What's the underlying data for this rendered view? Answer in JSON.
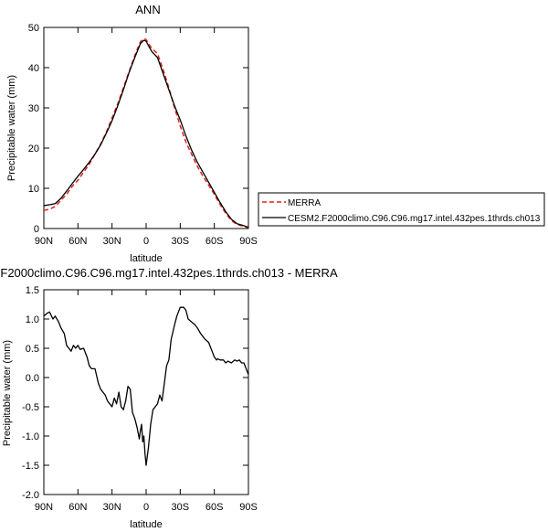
{
  "chart_data": [
    {
      "type": "line",
      "title": "ANN",
      "xlabel": "latitude",
      "ylabel": "Precipitable water (mm)",
      "xlim": [
        -90,
        90
      ],
      "ylim": [
        0,
        50
      ],
      "xticks": [
        -90,
        -60,
        -30,
        0,
        30,
        60,
        90
      ],
      "xtick_labels": [
        "90N",
        "60N",
        "30N",
        "0",
        "30S",
        "60S",
        "90S"
      ],
      "yticks": [
        0,
        10,
        20,
        30,
        40,
        50
      ],
      "ytick_labels": [
        "0",
        "10",
        "20",
        "30",
        "40",
        "50"
      ],
      "grid": false,
      "legend_position": "right",
      "series": [
        {
          "name": "MERRA",
          "color": "#e0201b",
          "style": "dashed",
          "x": [
            -90,
            -85,
            -80,
            -75,
            -70,
            -65,
            -60,
            -55,
            -50,
            -45,
            -40,
            -35,
            -30,
            -25,
            -20,
            -15,
            -10,
            -5,
            -2,
            0,
            2,
            5,
            10,
            15,
            20,
            25,
            30,
            35,
            40,
            45,
            50,
            55,
            60,
            65,
            70,
            75,
            80,
            85,
            90
          ],
          "y": [
            4.5,
            4.8,
            5.5,
            7,
            8.5,
            10.5,
            12,
            14,
            16,
            18.5,
            21,
            24,
            27.5,
            31,
            35,
            39,
            43,
            46.5,
            47.2,
            47,
            46,
            44.8,
            43.5,
            39.5,
            35,
            30,
            25.5,
            21.5,
            18.5,
            15.5,
            13,
            10.8,
            8.5,
            6,
            3.8,
            2,
            1,
            0.6,
            0.2
          ]
        },
        {
          "name": "CESM2.F2000climo.C96.C96.mg17.intel.432pes.1thrds.ch013",
          "color": "#000000",
          "style": "solid",
          "x": [
            -90,
            -85,
            -80,
            -75,
            -70,
            -65,
            -60,
            -55,
            -50,
            -45,
            -40,
            -35,
            -30,
            -25,
            -20,
            -15,
            -10,
            -5,
            -2,
            0,
            2,
            5,
            10,
            15,
            20,
            25,
            30,
            35,
            40,
            45,
            50,
            55,
            60,
            65,
            70,
            75,
            80,
            85,
            90
          ],
          "y": [
            5.7,
            5.9,
            6.2,
            7.5,
            9.3,
            11.2,
            13,
            14.7,
            16.5,
            18.5,
            20.8,
            23.7,
            26.8,
            30.5,
            34.5,
            38.8,
            42.5,
            46,
            46.8,
            46.6,
            45.5,
            44,
            42.5,
            38.5,
            34.5,
            30.5,
            27,
            23,
            19.5,
            16.5,
            14,
            11.5,
            9,
            6.5,
            4.2,
            2.3,
            1.2,
            0.8,
            0.3
          ]
        }
      ]
    },
    {
      "type": "line",
      "title": "F2000climo.C96.C96.mg17.intel.432pes.1thrds.ch013 - MERRA",
      "xlabel": "latitude",
      "ylabel": "Precipitable water (mm)",
      "xlim": [
        -90,
        90
      ],
      "ylim": [
        -2.0,
        1.5
      ],
      "xticks": [
        -90,
        -60,
        -30,
        0,
        30,
        60,
        90
      ],
      "xtick_labels": [
        "90N",
        "60N",
        "30N",
        "0",
        "30S",
        "60S",
        "90S"
      ],
      "yticks": [
        -2.0,
        -1.5,
        -1.0,
        -0.5,
        0.0,
        0.5,
        1.0,
        1.5
      ],
      "ytick_labels": [
        "-2.0",
        "-1.5",
        "-1.0",
        "-0.5",
        "0.0",
        "0.5",
        "1.0",
        "1.5"
      ],
      "grid": false,
      "series": [
        {
          "color": "#000000",
          "style": "solid",
          "x": [
            -90,
            -87,
            -85,
            -82,
            -80,
            -77,
            -75,
            -72,
            -70,
            -68,
            -66,
            -64,
            -62,
            -60,
            -58,
            -55,
            -52,
            -50,
            -48,
            -45,
            -42,
            -40,
            -38,
            -36,
            -34,
            -32,
            -30,
            -28,
            -26,
            -24,
            -22,
            -20,
            -18,
            -16,
            -14,
            -12,
            -10,
            -8,
            -6,
            -5,
            -4,
            -3,
            -2,
            -1,
            0,
            2,
            4,
            6,
            8,
            10,
            12,
            14,
            16,
            18,
            20,
            22,
            25,
            27,
            30,
            33,
            35,
            37,
            40,
            43,
            45,
            48,
            50,
            52,
            55,
            58,
            60,
            62,
            63,
            65,
            68,
            70,
            72,
            75,
            78,
            80,
            82,
            84,
            86,
            88,
            90
          ],
          "y": [
            1.05,
            1.1,
            1.12,
            1.0,
            1.05,
            0.95,
            0.85,
            0.75,
            0.55,
            0.5,
            0.45,
            0.55,
            0.5,
            0.55,
            0.48,
            0.5,
            0.35,
            0.2,
            0.15,
            0.15,
            -0.1,
            -0.2,
            -0.25,
            -0.3,
            -0.4,
            -0.45,
            -0.5,
            -0.35,
            -0.45,
            -0.25,
            -0.5,
            -0.55,
            -0.4,
            -0.15,
            -0.2,
            -0.6,
            -0.7,
            -0.85,
            -1.05,
            -0.9,
            -0.8,
            -1.1,
            -1.0,
            -1.3,
            -1.5,
            -1.2,
            -0.8,
            -0.55,
            -0.5,
            -0.45,
            -0.3,
            -0.4,
            -0.1,
            0.2,
            0.3,
            0.65,
            0.9,
            1.05,
            1.2,
            1.2,
            1.15,
            1.0,
            0.95,
            0.9,
            0.85,
            0.75,
            0.7,
            0.65,
            0.6,
            0.45,
            0.35,
            0.3,
            0.32,
            0.3,
            0.3,
            0.25,
            0.28,
            0.25,
            0.3,
            0.28,
            0.3,
            0.25,
            0.25,
            0.15,
            0.05
          ]
        }
      ]
    }
  ]
}
